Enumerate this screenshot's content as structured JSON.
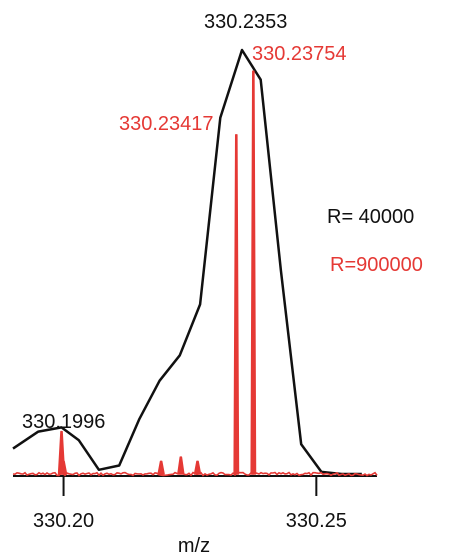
{
  "chart_data": {
    "type": "line",
    "title": "",
    "xlabel": "m/z",
    "ylabel": "",
    "xlim": [
      330.19,
      330.262
    ],
    "ylim": [
      0,
      100
    ],
    "grid": false,
    "x_ticks": [
      330.2,
      330.25
    ],
    "x_tick_labels": [
      "330.20",
      "330.25"
    ],
    "colors": {
      "low_res": "#111111",
      "high_res": "#e53935"
    },
    "series": [
      {
        "color": "#111111",
        "x": [
          330.19,
          330.195,
          330.1996,
          330.203,
          330.207,
          330.211,
          330.215,
          330.219,
          330.223,
          330.227,
          330.231,
          330.2353,
          330.239,
          330.243,
          330.247,
          330.251,
          330.255,
          330.259
        ],
        "y": [
          6,
          10,
          11,
          8,
          1,
          2,
          13,
          22,
          28,
          40,
          84,
          100,
          93,
          48,
          7,
          0.5,
          0,
          0
        ]
      },
      {
        "color": "#e53935",
        "x": [
          330.1996,
          330.2,
          330.2193,
          330.2232,
          330.2265,
          330.23417,
          330.23754
        ],
        "y": [
          10,
          3,
          3,
          4,
          3,
          80,
          95
        ]
      }
    ],
    "annotations": [
      {
        "text": "330.2353",
        "color": "#111111"
      },
      {
        "text": "330.23754",
        "color": "#e53935"
      },
      {
        "text": "330.23417",
        "color": "#e53935"
      },
      {
        "text": "330.1996",
        "color": "#111111"
      },
      {
        "text": "R= 40000",
        "color": "#111111"
      },
      {
        "text": "R=900000",
        "color": "#e53935"
      }
    ]
  }
}
